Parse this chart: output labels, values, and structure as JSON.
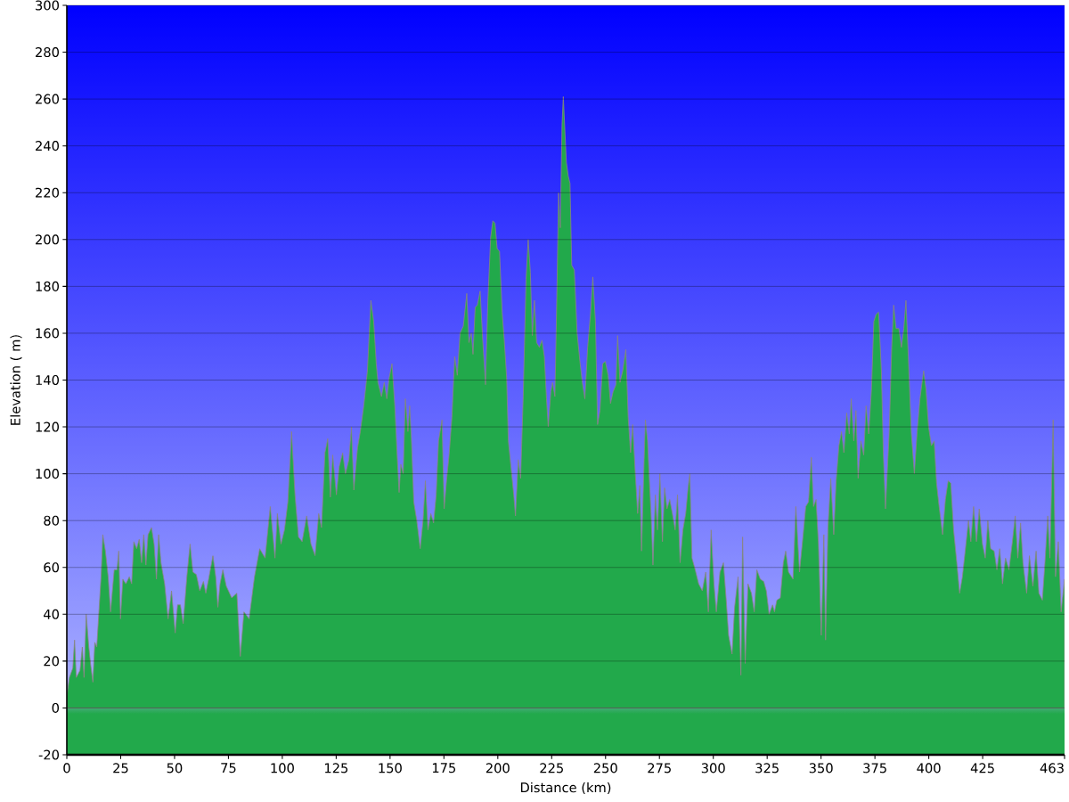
{
  "chart_data": {
    "type": "area",
    "xlabel": "Distance (km)",
    "ylabel": "Elevation ( m)",
    "x": [
      0,
      1.2,
      2.8,
      3.6,
      4.4,
      6.1,
      7.2,
      8.0,
      9.0,
      10.2,
      11.0,
      12.1,
      13.0,
      13.9,
      15.1,
      15.9,
      16.7,
      17.9,
      19.2,
      20.3,
      22.0,
      23.3,
      24.1,
      24.9,
      26.0,
      27.4,
      29.0,
      30.1,
      31.1,
      32.4,
      33.6,
      34.7,
      35.7,
      36.7,
      37.7,
      39.3,
      40.5,
      41.6,
      42.6,
      43.7,
      45.4,
      47.0,
      48.6,
      50.3,
      51.4,
      52.7,
      54.0,
      55.7,
      57.2,
      58.5,
      60.1,
      61.7,
      63.4,
      64.5,
      65.8,
      67.8,
      69.1,
      70.1,
      71.1,
      72.4,
      74.0,
      76.5,
      78.9,
      80.5,
      82.2,
      84.6,
      87.1,
      89.5,
      92.0,
      94.4,
      96.6,
      97.7,
      99.4,
      101.0,
      102.6,
      104.3,
      105.9,
      107.5,
      109.2,
      111.3,
      113.3,
      115.2,
      116.9,
      118.2,
      119.8,
      121.1,
      122.3,
      123.4,
      125.1,
      126.4,
      128.0,
      129.3,
      130.9,
      132.1,
      133.2,
      134.9,
      136.2,
      137.8,
      139.5,
      141.1,
      142.4,
      143.6,
      144.4,
      146.0,
      147.3,
      148.5,
      149.6,
      150.9,
      152.2,
      153.4,
      154.2,
      155.0,
      156.1,
      157.1,
      158.3,
      159.1,
      159.9,
      161.0,
      162.4,
      164.0,
      165.3,
      166.4,
      167.6,
      168.9,
      170.2,
      171.4,
      172.5,
      174.1,
      175.1,
      176.3,
      177.4,
      178.7,
      180.0,
      181.2,
      182.5,
      184.0,
      185.6,
      186.6,
      187.7,
      188.5,
      189.5,
      190.5,
      191.8,
      193.0,
      194.3,
      195.4,
      196.7,
      197.7,
      198.7,
      199.7,
      200.8,
      202.0,
      203.0,
      204.1,
      204.9,
      206.2,
      207.4,
      208.2,
      209.5,
      210.6,
      211.8,
      213.1,
      214.1,
      215.1,
      216.0,
      217.0,
      218.0,
      219.3,
      220.5,
      221.6,
      222.6,
      223.4,
      224.6,
      225.4,
      226.5,
      227.5,
      228.2,
      229.0,
      229.8,
      230.4,
      231.8,
      232.7,
      233.5,
      234.3,
      235.5,
      236.8,
      238.1,
      239.2,
      240.4,
      241.7,
      243.0,
      244.1,
      245.3,
      246.3,
      247.4,
      248.7,
      249.9,
      251.2,
      252.3,
      253.5,
      254.8,
      255.6,
      256.7,
      258.0,
      259.4,
      260.5,
      261.6,
      262.6,
      263.8,
      264.9,
      265.9,
      266.7,
      267.9,
      268.5,
      269.5,
      270.3,
      271.1,
      272.0,
      273.1,
      274.1,
      275.2,
      276.4,
      277.4,
      278.5,
      279.8,
      281.0,
      282.3,
      283.4,
      284.6,
      285.9,
      287.2,
      288.3,
      289.1,
      290.1,
      291.6,
      293.2,
      294.9,
      296.5,
      297.7,
      299.0,
      300.3,
      301.4,
      303.1,
      304.7,
      306.0,
      307.1,
      308.7,
      309.9,
      311.5,
      312.8,
      313.6,
      314.8,
      316.1,
      317.7,
      319.0,
      320.2,
      321.8,
      323.4,
      324.6,
      325.9,
      327.5,
      328.4,
      329.5,
      331.1,
      332.5,
      333.6,
      334.9,
      337.0,
      338.3,
      340.0,
      341.6,
      342.9,
      344.2,
      345.5,
      346.5,
      347.7,
      348.8,
      350.1,
      351.3,
      352.1,
      353.2,
      354.5,
      355.9,
      357.0,
      358.3,
      359.5,
      360.6,
      361.9,
      363.1,
      364.0,
      365.2,
      366.2,
      367.2,
      368.5,
      369.8,
      370.9,
      372.1,
      373.4,
      374.5,
      375.5,
      376.7,
      378.0,
      378.9,
      379.9,
      381.6,
      382.8,
      383.7,
      384.8,
      386.1,
      387.3,
      388.4,
      389.4,
      390.5,
      391.9,
      393.3,
      394.6,
      395.9,
      397.6,
      398.7,
      399.9,
      401.2,
      402.5,
      403.6,
      404.8,
      406.4,
      407.7,
      409.0,
      410.2,
      411.5,
      413.0,
      414.3,
      415.6,
      416.9,
      418.4,
      419.5,
      420.8,
      422.1,
      423.4,
      424.9,
      426.2,
      427.4,
      428.7,
      430.3,
      431.6,
      432.9,
      434.2,
      435.6,
      437.2,
      438.8,
      440.1,
      441.3,
      442.6,
      443.7,
      445.4,
      446.7,
      448.3,
      449.8,
      451.1,
      452.7,
      453.9,
      455.2,
      456.2,
      457.7,
      458.8,
      460.1,
      461.4,
      463
    ],
    "values": [
      5,
      13,
      17,
      29,
      13,
      16,
      26,
      13,
      40,
      26,
      19,
      11,
      28,
      26,
      44,
      56,
      74,
      67,
      56,
      41,
      59,
      59,
      67,
      38,
      55,
      53,
      56,
      53,
      71,
      68,
      72,
      62,
      74,
      61,
      74,
      77,
      70,
      55,
      74,
      62,
      53,
      38,
      50,
      32,
      44,
      44,
      36,
      56,
      70,
      58,
      57,
      50,
      54,
      49,
      55,
      65,
      56,
      43,
      53,
      59,
      52,
      47,
      49,
      22,
      41,
      38,
      56,
      68,
      64,
      86,
      64,
      83,
      70,
      76,
      88,
      118,
      91,
      73,
      71,
      82,
      70,
      65,
      83,
      77,
      109,
      115,
      90,
      108,
      91,
      103,
      109,
      100,
      106,
      120,
      93,
      111,
      118,
      129,
      144,
      174,
      165,
      147,
      139,
      133,
      139,
      132,
      141,
      147,
      129,
      106,
      92,
      104,
      100,
      132,
      118,
      129,
      115,
      88,
      80,
      68,
      80,
      97,
      76,
      83,
      79,
      91,
      114,
      123,
      85,
      98,
      108,
      124,
      150,
      142,
      160,
      163,
      177,
      156,
      160,
      151,
      171,
      172,
      178,
      157,
      138,
      174,
      201,
      208,
      207,
      196,
      195,
      169,
      157,
      141,
      114,
      102,
      91,
      82,
      106,
      98,
      133,
      183,
      200,
      186,
      159,
      174,
      156,
      154,
      157,
      150,
      132,
      120,
      135,
      139,
      133,
      181,
      220,
      205,
      249,
      261,
      233,
      227,
      224,
      189,
      187,
      160,
      148,
      139,
      132,
      154,
      168,
      184,
      165,
      121,
      127,
      147,
      148,
      142,
      130,
      135,
      138,
      159,
      139,
      144,
      153,
      124,
      109,
      121,
      100,
      83,
      95,
      67,
      106,
      123,
      114,
      98,
      83,
      61,
      91,
      76,
      100,
      71,
      94,
      85,
      89,
      83,
      76,
      91,
      62,
      76,
      83,
      94,
      100,
      64,
      59,
      53,
      50,
      58,
      41,
      76,
      53,
      41,
      58,
      62,
      46,
      31,
      23,
      43,
      56,
      14,
      73,
      19,
      53,
      49,
      41,
      59,
      55,
      54,
      50,
      40,
      44,
      41,
      46,
      47,
      62,
      67,
      58,
      55,
      86,
      58,
      73,
      86,
      88,
      107,
      86,
      89,
      70,
      31,
      74,
      29,
      77,
      98,
      74,
      97,
      112,
      118,
      109,
      126,
      117,
      132,
      114,
      127,
      98,
      114,
      108,
      129,
      117,
      136,
      165,
      168,
      169,
      144,
      109,
      85,
      117,
      154,
      172,
      162,
      162,
      154,
      162,
      174,
      150,
      117,
      100,
      118,
      132,
      144,
      136,
      120,
      112,
      114,
      96,
      86,
      74,
      89,
      97,
      96,
      76,
      62,
      49,
      56,
      67,
      80,
      71,
      86,
      71,
      85,
      70,
      64,
      80,
      68,
      67,
      59,
      68,
      53,
      64,
      59,
      71,
      82,
      64,
      79,
      62,
      49,
      65,
      52,
      67,
      49,
      46,
      62,
      82,
      64,
      123,
      56,
      71,
      41,
      55
    ],
    "color": "#22a94b",
    "xlim": [
      0,
      463
    ],
    "ylim": [
      -20,
      300
    ],
    "xticks": [
      0,
      25,
      50,
      75,
      100,
      125,
      150,
      175,
      200,
      225,
      250,
      275,
      300,
      325,
      350,
      375,
      400,
      425,
      463
    ],
    "yticks": [
      -20,
      0,
      20,
      40,
      60,
      80,
      100,
      120,
      140,
      160,
      180,
      200,
      220,
      240,
      260,
      280,
      300
    ],
    "grid": "y"
  }
}
